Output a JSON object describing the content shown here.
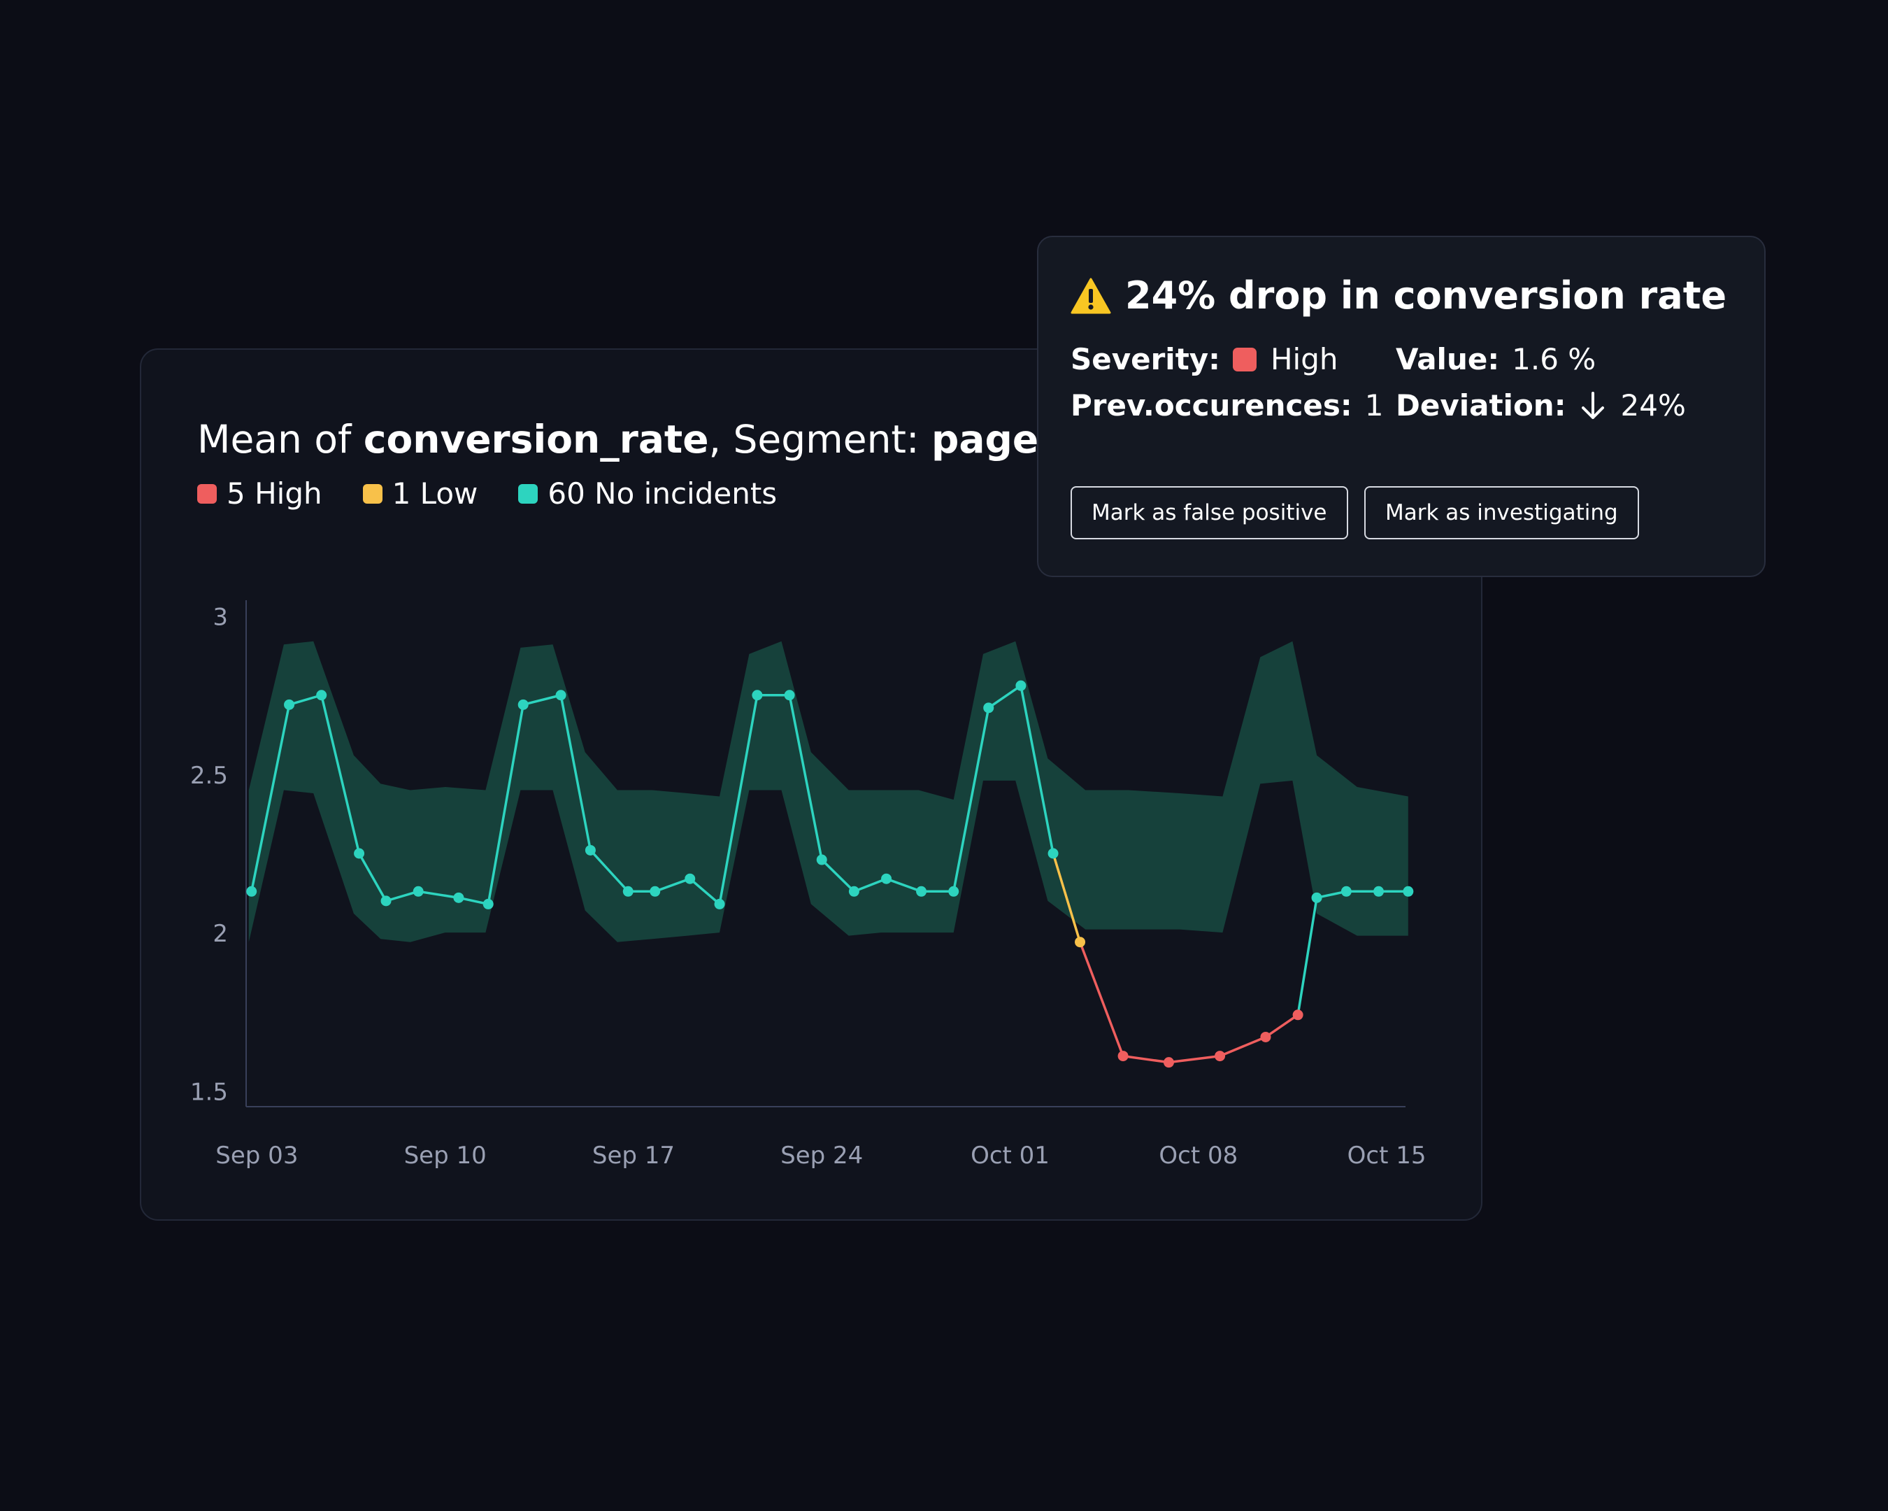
{
  "title": {
    "prefix": "Mean of ",
    "metric": "conversion_rate",
    "middle": ", Segment: ",
    "segment": "page"
  },
  "legend": [
    {
      "label": "5 High",
      "color": "#ef5e5e"
    },
    {
      "label": "1 Low",
      "color": "#f8c14a"
    },
    {
      "label": "60 No incidents",
      "color": "#2dd4bf"
    }
  ],
  "colors": {
    "normal": "#2dd4bf",
    "low": "#f8c14a",
    "high": "#ef5e5e",
    "band": "#17433d",
    "axis": "#39405a",
    "tick": "#9aa0b3"
  },
  "popup": {
    "icon": "warning-icon",
    "title": "24% drop in conversion rate",
    "severity_label": "Severity:",
    "severity_value": "High",
    "value_label": "Value:",
    "value_value": "1.6 %",
    "prev_label": "Prev.occurences:",
    "prev_value": "1",
    "deviation_label": "Deviation:",
    "deviation_icon": "arrow-down-icon",
    "deviation_value": "24%",
    "btn_false_positive": "Mark as false positive",
    "btn_investigating": "Mark as investigating"
  },
  "chart_data": {
    "type": "line",
    "y_ticks": [
      "3",
      "2.5",
      "2",
      "1.5"
    ],
    "y_tick_values": [
      3,
      2.5,
      2,
      1.5
    ],
    "ylim": [
      1.45,
      3.05
    ],
    "x_ticks": [
      "Sep 03",
      "Sep 10",
      "Sep 17",
      "Sep 24",
      "Oct 01",
      "Oct 08",
      "Oct 15"
    ],
    "x_tick_days": [
      3,
      10,
      17,
      24,
      31,
      38,
      45
    ],
    "xlim": [
      2.6,
      45.7
    ],
    "series": [
      {
        "points": [
          {
            "day": 2.8,
            "value": 2.13,
            "status": "normal"
          },
          {
            "day": 4.2,
            "value": 2.72,
            "status": "normal"
          },
          {
            "day": 5.4,
            "value": 2.75,
            "status": "normal"
          },
          {
            "day": 6.8,
            "value": 2.25,
            "status": "normal"
          },
          {
            "day": 7.8,
            "value": 2.1,
            "status": "normal"
          },
          {
            "day": 9.0,
            "value": 2.13,
            "status": "normal"
          },
          {
            "day": 10.5,
            "value": 2.11,
            "status": "normal"
          },
          {
            "day": 11.6,
            "value": 2.09,
            "status": "normal"
          },
          {
            "day": 12.9,
            "value": 2.72,
            "status": "normal"
          },
          {
            "day": 14.3,
            "value": 2.75,
            "status": "normal"
          },
          {
            "day": 15.4,
            "value": 2.26,
            "status": "normal"
          },
          {
            "day": 16.8,
            "value": 2.13,
            "status": "normal"
          },
          {
            "day": 17.8,
            "value": 2.13,
            "status": "normal"
          },
          {
            "day": 19.1,
            "value": 2.17,
            "status": "normal"
          },
          {
            "day": 20.2,
            "value": 2.09,
            "status": "normal"
          },
          {
            "day": 21.6,
            "value": 2.75,
            "status": "normal"
          },
          {
            "day": 22.8,
            "value": 2.75,
            "status": "normal"
          },
          {
            "day": 24.0,
            "value": 2.23,
            "status": "normal"
          },
          {
            "day": 25.2,
            "value": 2.13,
            "status": "normal"
          },
          {
            "day": 26.4,
            "value": 2.17,
            "status": "normal"
          },
          {
            "day": 27.7,
            "value": 2.13,
            "status": "normal"
          },
          {
            "day": 28.9,
            "value": 2.13,
            "status": "normal"
          },
          {
            "day": 30.2,
            "value": 2.71,
            "status": "normal"
          },
          {
            "day": 31.4,
            "value": 2.78,
            "status": "normal"
          },
          {
            "day": 32.6,
            "value": 2.25,
            "status": "normal"
          },
          {
            "day": 33.6,
            "value": 1.97,
            "status": "low"
          },
          {
            "day": 35.2,
            "value": 1.61,
            "status": "high"
          },
          {
            "day": 36.9,
            "value": 1.59,
            "status": "high"
          },
          {
            "day": 38.8,
            "value": 1.61,
            "status": "high"
          },
          {
            "day": 40.5,
            "value": 1.67,
            "status": "high"
          },
          {
            "day": 41.7,
            "value": 1.74,
            "status": "high"
          },
          {
            "day": 42.4,
            "value": 2.11,
            "status": "normal"
          },
          {
            "day": 43.5,
            "value": 2.13,
            "status": "normal"
          },
          {
            "day": 44.7,
            "value": 2.13,
            "status": "normal"
          },
          {
            "day": 45.8,
            "value": 2.13,
            "status": "normal"
          }
        ]
      }
    ],
    "band": {
      "days": [
        2.7,
        4.0,
        5.1,
        6.6,
        7.6,
        8.7,
        10.0,
        11.5,
        12.8,
        14.0,
        15.2,
        16.4,
        17.7,
        19.0,
        20.2,
        21.3,
        22.5,
        23.6,
        25.0,
        26.2,
        27.6,
        28.9,
        30.0,
        31.2,
        32.4,
        33.8,
        35.4,
        37.3,
        38.9,
        40.3,
        41.5,
        42.4,
        43.9,
        45.8
      ],
      "upper": [
        2.45,
        2.91,
        2.92,
        2.56,
        2.47,
        2.45,
        2.46,
        2.45,
        2.9,
        2.91,
        2.57,
        2.45,
        2.45,
        2.44,
        2.43,
        2.88,
        2.92,
        2.57,
        2.45,
        2.45,
        2.45,
        2.42,
        2.88,
        2.92,
        2.55,
        2.45,
        2.45,
        2.44,
        2.43,
        2.87,
        2.92,
        2.56,
        2.46,
        2.43
      ],
      "lower": [
        1.97,
        2.45,
        2.44,
        2.06,
        1.98,
        1.97,
        2.0,
        2.0,
        2.45,
        2.45,
        2.07,
        1.97,
        1.98,
        1.99,
        2.0,
        2.45,
        2.45,
        2.09,
        1.99,
        2.0,
        2.0,
        2.0,
        2.48,
        2.48,
        2.1,
        2.01,
        2.01,
        2.01,
        2.0,
        2.47,
        2.48,
        2.06,
        1.99,
        1.99
      ]
    }
  }
}
